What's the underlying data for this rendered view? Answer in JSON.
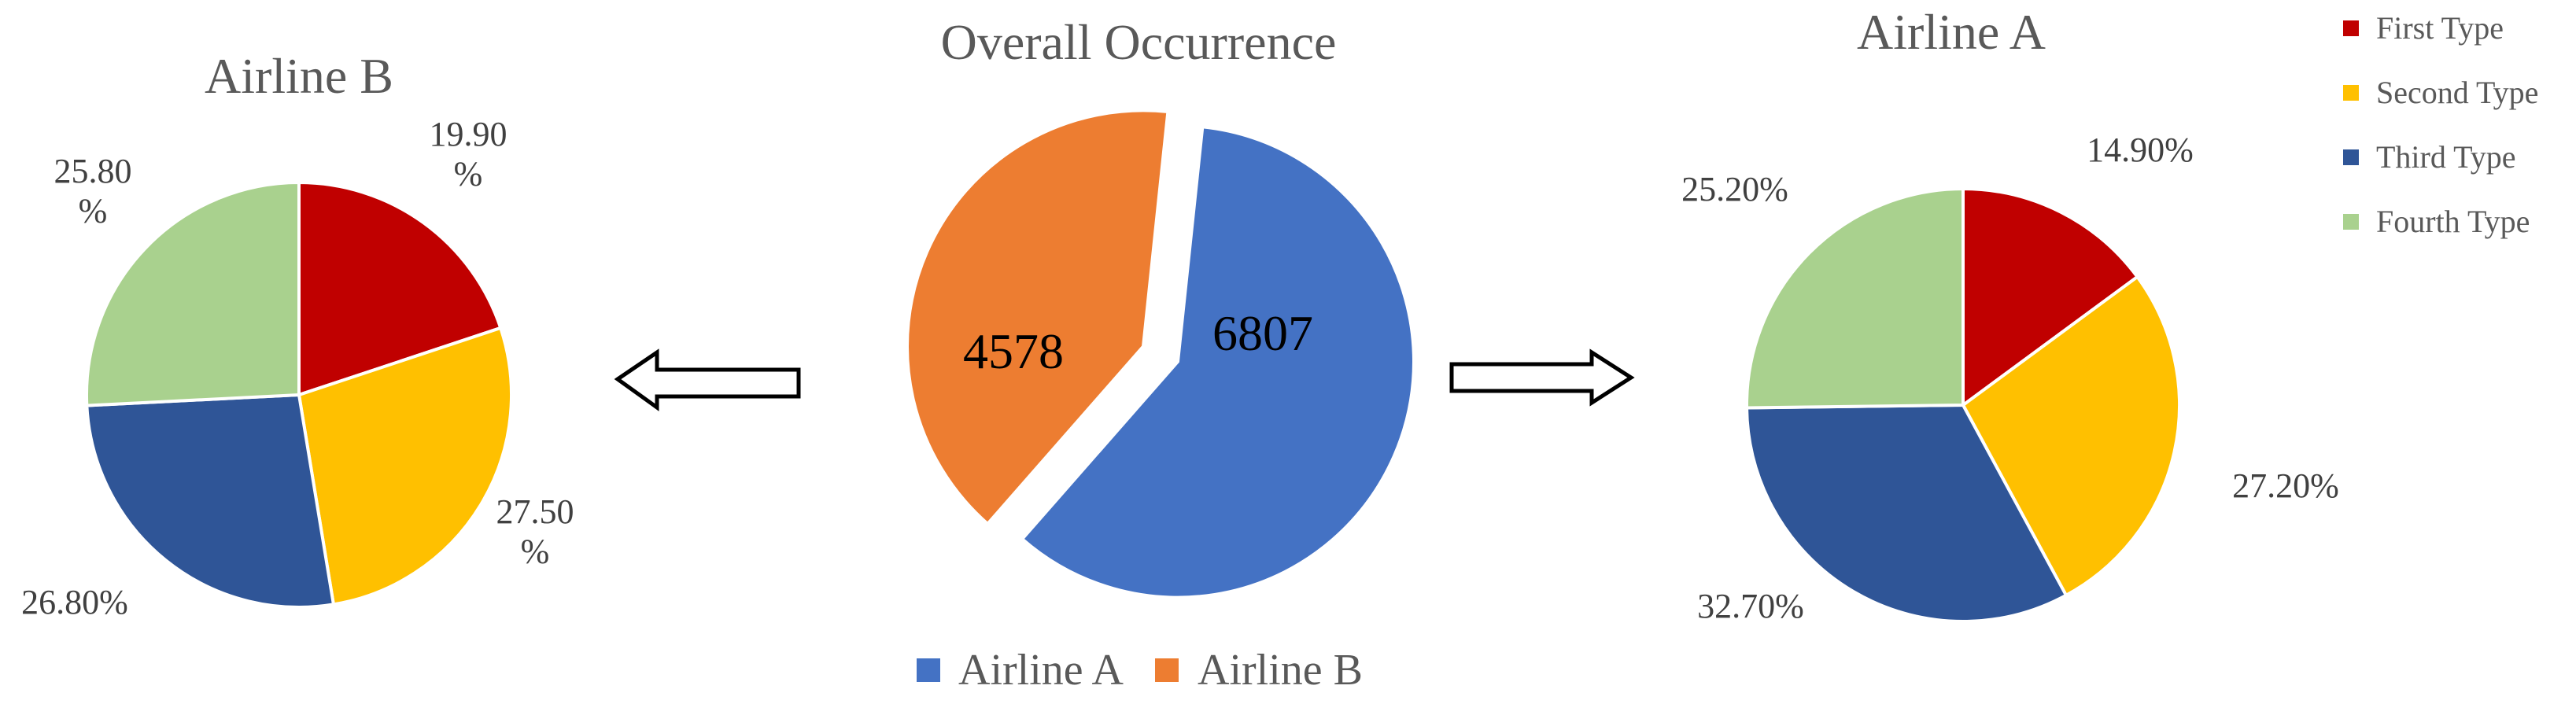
{
  "chart_data": [
    {
      "type": "pie",
      "title": "Airline B",
      "categories": [
        "First Type",
        "Second Type",
        "Third Type",
        "Fourth Type"
      ],
      "values": [
        19.9,
        27.5,
        26.8,
        25.8
      ],
      "data_labels": [
        "19.90\n%",
        "27.50\n%",
        "26.80%",
        "25.80\n%"
      ],
      "colors": [
        "#C00000",
        "#FFC000",
        "#2F5597",
        "#A9D18E"
      ],
      "legend": "shared, top-right"
    },
    {
      "type": "pie",
      "title": "Overall Occurrence",
      "categories": [
        "Airline A",
        "Airline B"
      ],
      "values": [
        6807,
        4578
      ],
      "data_labels": [
        "6807",
        "4578"
      ],
      "colors": [
        "#4472C4",
        "#ED7D31"
      ],
      "exploded": true,
      "legend": "bottom"
    },
    {
      "type": "pie",
      "title": "Airline A",
      "categories": [
        "First Type",
        "Second Type",
        "Third Type",
        "Fourth Type"
      ],
      "values": [
        14.9,
        27.2,
        32.7,
        25.2
      ],
      "data_labels": [
        "14.90%",
        "27.20%",
        "32.70%",
        "25.20%"
      ],
      "colors": [
        "#C00000",
        "#FFC000",
        "#2F5597",
        "#A9D18E"
      ],
      "legend": "top-right"
    }
  ],
  "legend_types": [
    {
      "label": "First Type",
      "color": "#C00000"
    },
    {
      "label": "Second Type",
      "color": "#FFC000"
    },
    {
      "label": "Third Type",
      "color": "#2F5597"
    },
    {
      "label": "Fourth Type",
      "color": "#A9D18E"
    }
  ],
  "legend_airlines": [
    {
      "label": "Airline A",
      "color": "#4472C4"
    },
    {
      "label": "Airline B",
      "color": "#ED7D31"
    }
  ],
  "arrows": [
    "left-arrow",
    "right-arrow"
  ]
}
